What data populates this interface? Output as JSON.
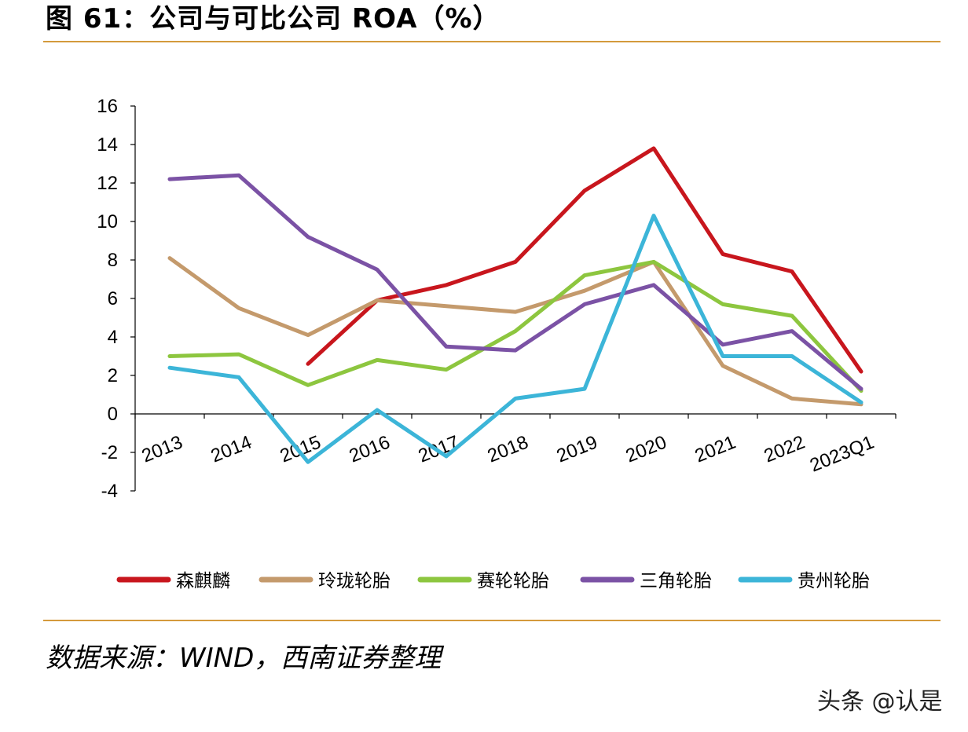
{
  "title": "图 61：公司与可比公司 ROA（%）",
  "source": "数据来源：WIND，西南证券整理",
  "watermark": "头条 @认是",
  "chart_data": {
    "type": "line",
    "title": "图 61：公司与可比公司 ROA（%）",
    "xlabel": "",
    "ylabel": "",
    "ylim": [
      -4,
      16
    ],
    "yticks": [
      16,
      14,
      12,
      10,
      8,
      6,
      4,
      2,
      0,
      -2,
      -4
    ],
    "categories": [
      "2013",
      "2014",
      "2015",
      "2016",
      "2017",
      "2018",
      "2019",
      "2020",
      "2021",
      "2022",
      "2023Q1"
    ],
    "legend_position": "bottom",
    "series": [
      {
        "name": "森麒麟",
        "color": "#c8161d",
        "values": [
          null,
          null,
          2.6,
          5.9,
          6.7,
          7.9,
          11.6,
          13.8,
          8.3,
          7.4,
          2.2
        ]
      },
      {
        "name": "玲珑轮胎",
        "color": "#c49a6c",
        "values": [
          8.1,
          5.5,
          4.1,
          5.9,
          5.6,
          5.3,
          6.4,
          7.9,
          2.5,
          0.8,
          0.5
        ]
      },
      {
        "name": "赛轮轮胎",
        "color": "#8dc63f",
        "values": [
          3.0,
          3.1,
          1.5,
          2.8,
          2.3,
          4.3,
          7.2,
          7.9,
          5.7,
          5.1,
          1.2
        ]
      },
      {
        "name": "三角轮胎",
        "color": "#7b52a5",
        "values": [
          12.2,
          12.4,
          9.2,
          7.5,
          3.5,
          3.3,
          5.7,
          6.7,
          3.6,
          4.3,
          1.3
        ]
      },
      {
        "name": "贵州轮胎",
        "color": "#3cb5d8",
        "values": [
          2.4,
          1.9,
          -2.5,
          0.2,
          -2.2,
          0.8,
          1.3,
          10.3,
          3.0,
          3.0,
          0.6
        ]
      }
    ]
  }
}
